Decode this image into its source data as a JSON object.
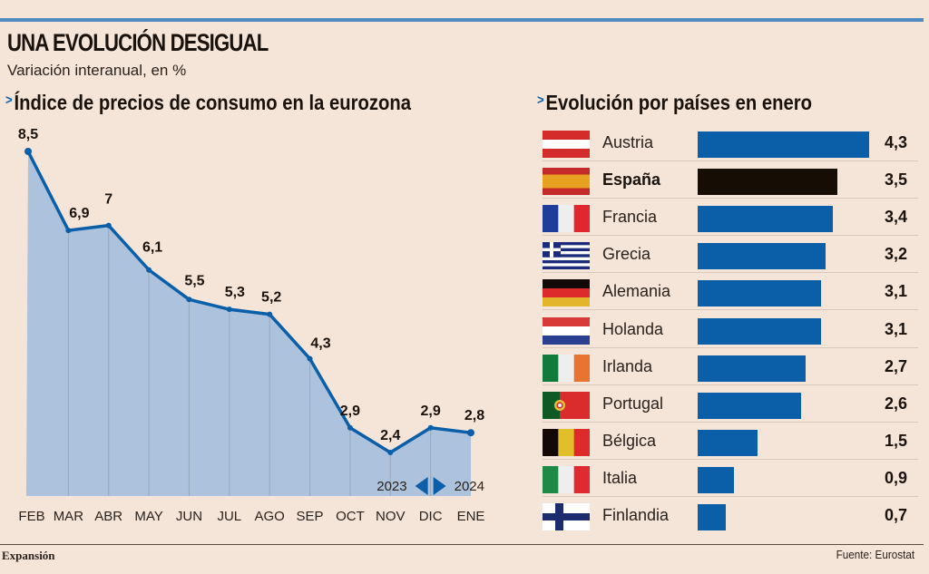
{
  "header": {
    "title": "UNA EVOLUCIÓN DESIGUAL",
    "subtitle": "Variación interanual, en %"
  },
  "colors": {
    "background": "#f5e4d8",
    "accent_blue": "#0a5fa8",
    "area_fill": "#adc2dc",
    "highlight_bar": "#160d05",
    "top_rule": "#4f8bc1"
  },
  "chart_data": [
    {
      "type": "area",
      "title": "Índice de precios de consumo en la eurozona",
      "xlabel": "",
      "ylabel": "Variación interanual, en %",
      "categories": [
        "FEB",
        "MAR",
        "ABR",
        "MAY",
        "JUN",
        "JUL",
        "AGO",
        "SEP",
        "OCT",
        "NOV",
        "DIC",
        "ENE"
      ],
      "values": [
        8.5,
        6.9,
        7,
        6.1,
        5.5,
        5.3,
        5.2,
        4.3,
        2.9,
        2.4,
        2.9,
        2.8
      ],
      "value_labels": [
        "8,5",
        "6,9",
        "7",
        "6,1",
        "5,5",
        "5,3",
        "5,2",
        "4,3",
        "2,9",
        "2,4",
        "2,9",
        "2,8"
      ],
      "year_marker": {
        "left": "2023",
        "right": "2024",
        "between": [
          "DIC",
          "ENE"
        ]
      },
      "grid": "vertical",
      "ylim": [
        0,
        8.5
      ]
    },
    {
      "type": "bar",
      "orientation": "horizontal",
      "title": "Evolución por países en enero",
      "categories": [
        "Austria",
        "España",
        "Francia",
        "Grecia",
        "Alemania",
        "Holanda",
        "Irlanda",
        "Portugal",
        "Bélgica",
        "Italia",
        "Finlandia"
      ],
      "values": [
        4.3,
        3.5,
        3.4,
        3.2,
        3.1,
        3.1,
        2.7,
        2.6,
        1.5,
        0.9,
        0.7
      ],
      "value_labels": [
        "4,3",
        "3,5",
        "3,4",
        "3,2",
        "3,1",
        "3,1",
        "2,7",
        "2,6",
        "1,5",
        "0,9",
        "0,7"
      ],
      "highlight": "España",
      "xlim": [
        0,
        4.3
      ]
    }
  ],
  "countries": [
    {
      "name": "Austria",
      "flag": "austria-flag-icon",
      "bold": false
    },
    {
      "name": "España",
      "flag": "spain-flag-icon",
      "bold": true
    },
    {
      "name": "Francia",
      "flag": "france-flag-icon",
      "bold": false
    },
    {
      "name": "Grecia",
      "flag": "greece-flag-icon",
      "bold": false
    },
    {
      "name": "Alemania",
      "flag": "germany-flag-icon",
      "bold": false
    },
    {
      "name": "Holanda",
      "flag": "netherlands-flag-icon",
      "bold": false
    },
    {
      "name": "Irlanda",
      "flag": "ireland-flag-icon",
      "bold": false
    },
    {
      "name": "Portugal",
      "flag": "portugal-flag-icon",
      "bold": false
    },
    {
      "name": "Bélgica",
      "flag": "belgium-flag-icon",
      "bold": false
    },
    {
      "name": "Italia",
      "flag": "italy-flag-icon",
      "bold": false
    },
    {
      "name": "Finlandia",
      "flag": "finland-flag-icon",
      "bold": false
    }
  ],
  "footer": {
    "brand": "Expansión",
    "source": "Fuente: Eurostat"
  }
}
